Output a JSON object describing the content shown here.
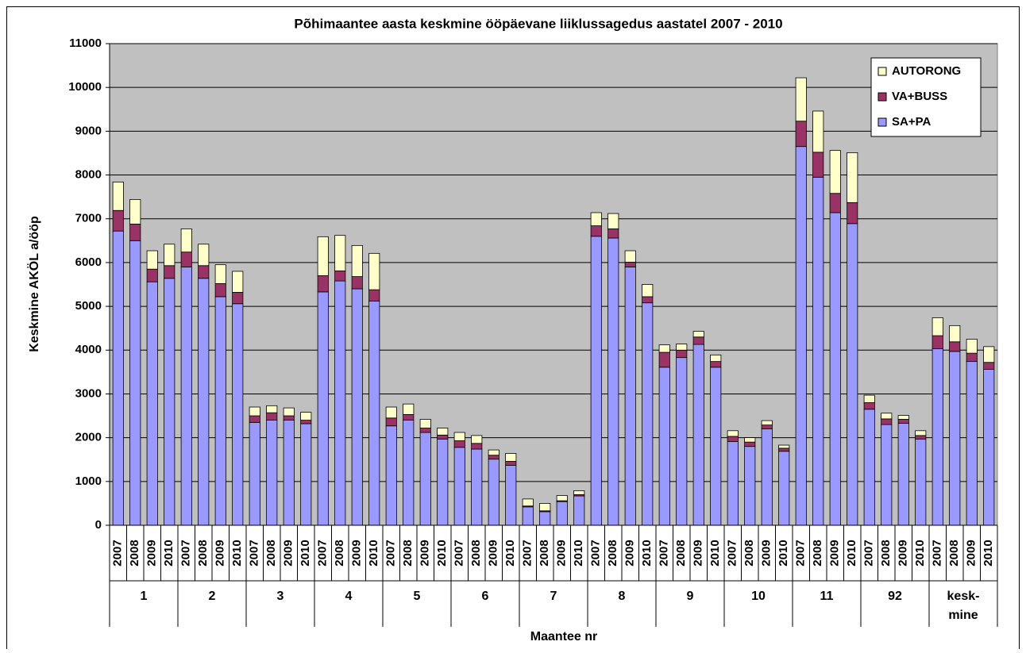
{
  "chart_data": {
    "type": "stacked_bar",
    "title": "Põhimaantee aasta keskmine ööpäevane liiklussagedus aastatel 2007 - 2010",
    "y_label": "Keskmine AKÖL a/ööp",
    "x_label": "Maantee nr",
    "groups": [
      "1",
      "2",
      "3",
      "4",
      "5",
      "6",
      "7",
      "8",
      "9",
      "10",
      "11",
      "92",
      "kesk-\nmine"
    ],
    "categories": [
      "2007",
      "2008",
      "2009",
      "2010",
      "2007",
      "2008",
      "2009",
      "2010",
      "2007",
      "2008",
      "2009",
      "2010",
      "2007",
      "2008",
      "2009",
      "2010",
      "2007",
      "2008",
      "2009",
      "2010",
      "2007",
      "2008",
      "2009",
      "2010",
      "2007",
      "2008",
      "2009",
      "2010",
      "2007",
      "2008",
      "2009",
      "2010",
      "2007",
      "2008",
      "2009",
      "2010",
      "2007",
      "2008",
      "2009",
      "2010",
      "2007",
      "2008",
      "2009",
      "2010",
      "2007",
      "2008",
      "2009",
      "2010",
      "2007",
      "2008",
      "2009",
      "2010"
    ],
    "series": [
      {
        "name": "SA+PA",
        "color": "#9999ff",
        "values": [
          6720,
          6500,
          5560,
          5640,
          5900,
          5640,
          5220,
          5060,
          2350,
          2400,
          2400,
          2320,
          5330,
          5580,
          5400,
          5120,
          2270,
          2400,
          2120,
          1970,
          1780,
          1740,
          1510,
          1370,
          420,
          310,
          540,
          670,
          6600,
          6560,
          5900,
          5080,
          3610,
          3830,
          4130,
          3610,
          1910,
          1800,
          2200,
          1690,
          8650,
          7950,
          7140,
          6890,
          2650,
          2300,
          2330,
          1970,
          4030,
          3970,
          3740,
          3560
        ]
      },
      {
        "name": "VA+BUSS",
        "color": "#993366",
        "values": [
          470,
          380,
          290,
          290,
          340,
          290,
          300,
          260,
          150,
          170,
          100,
          80,
          370,
          230,
          280,
          260,
          180,
          130,
          100,
          90,
          150,
          130,
          90,
          90,
          20,
          20,
          20,
          30,
          240,
          210,
          110,
          140,
          340,
          170,
          170,
          130,
          120,
          100,
          90,
          70,
          580,
          570,
          440,
          480,
          150,
          130,
          90,
          80,
          300,
          220,
          190,
          160
        ]
      },
      {
        "name": "AUTORONG",
        "color": "#ffffcc",
        "values": [
          650,
          560,
          420,
          490,
          530,
          490,
          430,
          480,
          200,
          160,
          180,
          180,
          890,
          810,
          710,
          830,
          250,
          240,
          200,
          160,
          190,
          180,
          120,
          180,
          160,
          170,
          120,
          90,
          300,
          350,
          260,
          280,
          170,
          140,
          130,
          150,
          130,
          100,
          100,
          70,
          990,
          940,
          980,
          1140,
          170,
          130,
          90,
          110,
          410,
          370,
          320,
          360
        ]
      }
    ],
    "ylim": [
      0,
      11000
    ],
    "yticks": [
      0,
      1000,
      2000,
      3000,
      4000,
      5000,
      6000,
      7000,
      8000,
      9000,
      10000,
      11000
    ],
    "grid": true,
    "legend": "upper right",
    "plot_background": "#c0c0c0"
  }
}
